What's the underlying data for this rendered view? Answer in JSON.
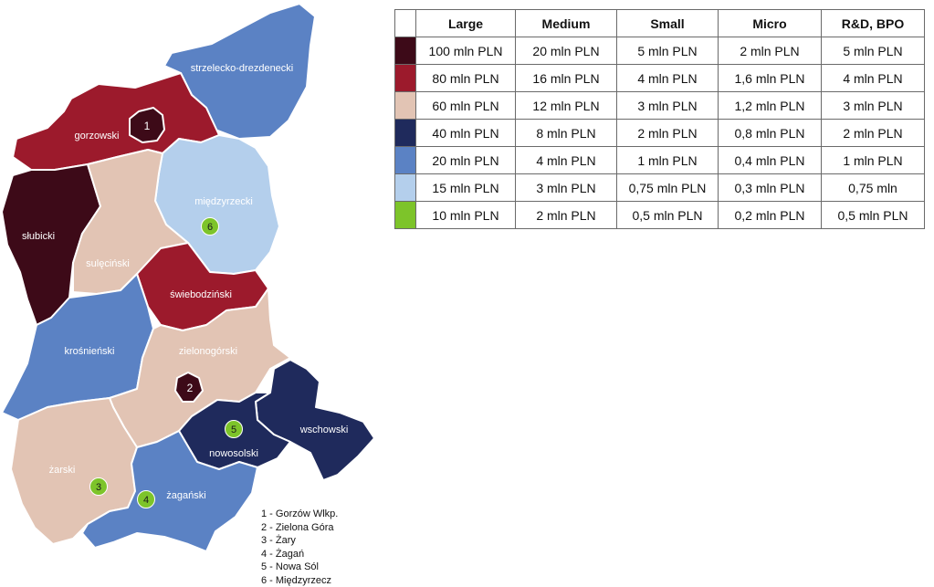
{
  "colors": {
    "tier_100": "#3d0a18",
    "tier_80": "#9c1a2c",
    "tier_60": "#e2c4b4",
    "tier_40": "#1f2a5c",
    "tier_20": "#5b82c4",
    "tier_15": "#b4cfec",
    "tier_10": "#7dc42a"
  },
  "table": {
    "headers": [
      "Large",
      "Medium",
      "Small",
      "Micro",
      "R&D, BPO"
    ],
    "rows": [
      {
        "color": "#3d0a18",
        "cells": [
          "100 mln  PLN",
          "20 mln PLN",
          "5 mln PLN",
          "2 mln PLN",
          "5 mln PLN"
        ]
      },
      {
        "color": "#9c1a2c",
        "cells": [
          "80 mln PLN",
          "16 mln PLN",
          "4 mln PLN",
          "1,6 mln PLN",
          "4 mln PLN"
        ]
      },
      {
        "color": "#e2c4b4",
        "cells": [
          "60 mln PLN",
          "12 mln PLN",
          "3 mln PLN",
          "1,2 mln PLN",
          "3 mln PLN"
        ]
      },
      {
        "color": "#1f2a5c",
        "cells": [
          "40 mln PLN",
          "8 mln PLN",
          "2 mln PLN",
          "0,8 mln PLN",
          "2 mln PLN"
        ]
      },
      {
        "color": "#5b82c4",
        "cells": [
          "20 mln PLN",
          "4 mln PLN",
          "1 mln PLN",
          "0,4 mln PLN",
          "1 mln PLN"
        ]
      },
      {
        "color": "#b4cfec",
        "cells": [
          "15 mln PLN",
          "3 mln PLN",
          "0,75 mln PLN",
          "0,3 mln PLN",
          "0,75 mln"
        ]
      },
      {
        "color": "#7dc42a",
        "cells": [
          "10 mln PLN",
          "2 mln PLN",
          "0,5 mln PLN",
          "0,2 mln PLN",
          "0,5 mln PLN"
        ]
      }
    ]
  },
  "districts": {
    "strzelecko": "strzelecko-drezdenecki",
    "gorzowski": "gorzowski",
    "miedzyrzecki": "międzyrzecki",
    "slubicki": "słubicki",
    "sulecinski": "sulęciński",
    "swiebodzinski": "świebodziński",
    "krosnienski": "krośnieński",
    "zielonogorski": "zielonogórski",
    "nowosolski": "nowosolski",
    "wschowski": "wschowski",
    "zarski": "żarski",
    "zaganski": "żagański"
  },
  "city_markers": [
    "1",
    "2",
    "3",
    "4",
    "5",
    "6"
  ],
  "city_key": [
    "1 - Gorzów Wlkp.",
    "2 - Zielona Góra",
    "3 - Żary",
    "4 - Żagań",
    "5 - Nowa Sól",
    "6 - Międzyrzecz"
  ]
}
